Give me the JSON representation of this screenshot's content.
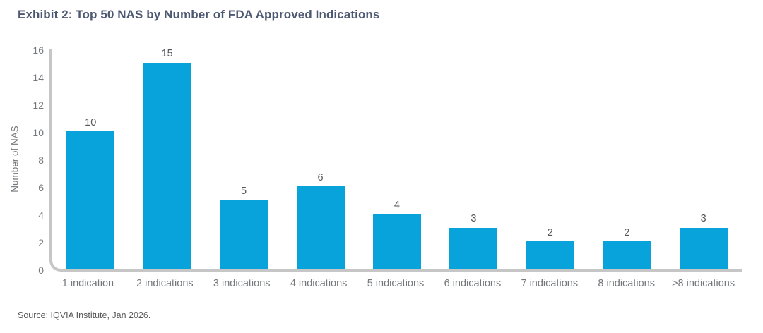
{
  "header": {
    "title": "Exhibit 2: Top 50 NAS by Number of FDA Approved Indications"
  },
  "footer": {
    "source": "Source: IQVIA Institute, Jan 2026."
  },
  "chart_data": {
    "type": "bar",
    "title": "Exhibit 2: Top 50 NAS by Number of FDA Approved Indications",
    "categories": [
      "1 indication",
      "2 indications",
      "3 indications",
      "4 indications",
      "5 indications",
      "6 indications",
      "7 indications",
      "8 indications",
      ">8 indications"
    ],
    "values": [
      10,
      15,
      5,
      6,
      4,
      3,
      2,
      2,
      3
    ],
    "xlabel": "",
    "ylabel": "Number of NAS",
    "ylim": [
      0,
      16
    ],
    "yticks": [
      0,
      2,
      4,
      6,
      8,
      10,
      12,
      14,
      16
    ],
    "grid": false,
    "legend_position": "none",
    "data_labels": true,
    "colors": {
      "bar": "#09A3DC",
      "axis": "#C6C6C6",
      "value_label": "#54565A",
      "tick_label": "#75787B",
      "title": "#4D5973",
      "source": "#595959"
    }
  }
}
